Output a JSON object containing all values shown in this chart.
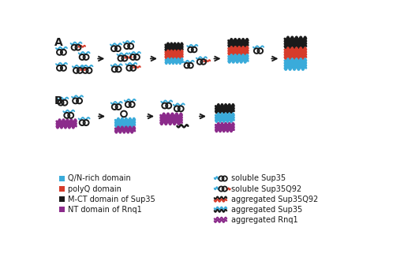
{
  "background_color": "#ffffff",
  "colors": {
    "blue": "#3aabda",
    "red": "#d63b2a",
    "black": "#1a1a1a",
    "purple": "#8b2b8b"
  },
  "legend_left": [
    {
      "color": "#3aabda",
      "label": "Q/N-rich domain"
    },
    {
      "color": "#d63b2a",
      "label": "polyQ domain"
    },
    {
      "color": "#1a1a1a",
      "label": "M-CT domain of Sup35"
    },
    {
      "color": "#8b2b8b",
      "label": "NT domain of Rnq1"
    }
  ],
  "legend_right": [
    {
      "label": "soluble Sup35"
    },
    {
      "label": "soluble Sup35Q92"
    },
    {
      "label": "aggregated Sup35Q92"
    },
    {
      "label": "aggregated Sup35"
    },
    {
      "label": "aggregated Rnq1"
    }
  ],
  "panel_A_label": "A",
  "panel_B_label": "B"
}
